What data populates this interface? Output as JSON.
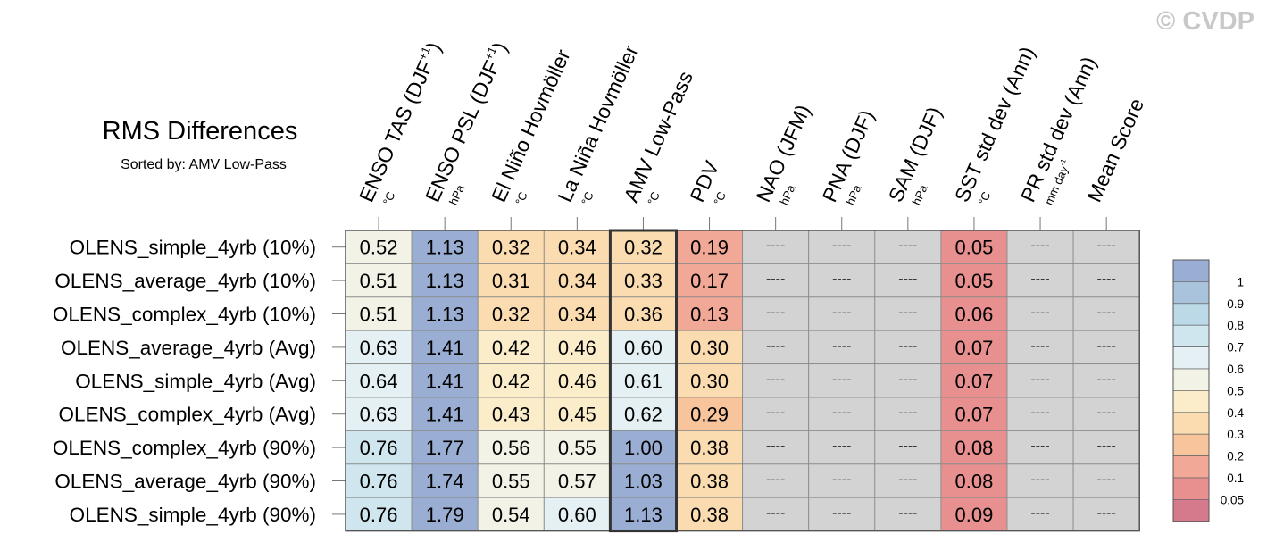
{
  "watermark": "© CVDP",
  "chart_data": {
    "type": "table",
    "title": "RMS Differences",
    "subtitle": "Sorted by: AMV Low-Pass",
    "highlight_column": 4,
    "columns": [
      {
        "label": "ENSO TAS (DJF",
        "sup": "+1",
        "tail": ")",
        "unit": "°C"
      },
      {
        "label": "ENSO PSL (DJF",
        "sup": "+1",
        "tail": ")",
        "unit": "hPa"
      },
      {
        "label": "El Niño Hovmöller",
        "sup": "",
        "tail": "",
        "unit": "°C"
      },
      {
        "label": "La Niña Hovmöller",
        "sup": "",
        "tail": "",
        "unit": "°C"
      },
      {
        "label": "AMV Low-Pass",
        "sup": "",
        "tail": "",
        "unit": "°C"
      },
      {
        "label": "PDV",
        "sup": "",
        "tail": "",
        "unit": "°C"
      },
      {
        "label": "NAO (JFM)",
        "sup": "",
        "tail": "",
        "unit": "hPa"
      },
      {
        "label": "PNA (DJF)",
        "sup": "",
        "tail": "",
        "unit": "hPa"
      },
      {
        "label": "SAM (DJF)",
        "sup": "",
        "tail": "",
        "unit": "hPa"
      },
      {
        "label": "SST std dev (Ann)",
        "sup": "",
        "tail": "",
        "unit": "°C"
      },
      {
        "label": "PR std dev (Ann)",
        "sup": "",
        "tail": "",
        "unit": "mm day",
        "unit_sup": "-1"
      },
      {
        "label": "Mean Score",
        "sup": "",
        "tail": "",
        "unit": ""
      }
    ],
    "rows": [
      {
        "name": "OLENS_simple_4yrb (10%)",
        "values": [
          "0.52",
          "1.13",
          "0.32",
          "0.34",
          "0.32",
          "0.19",
          "----",
          "----",
          "----",
          "0.05",
          "----",
          "----"
        ]
      },
      {
        "name": "OLENS_average_4yrb (10%)",
        "values": [
          "0.51",
          "1.13",
          "0.31",
          "0.34",
          "0.33",
          "0.17",
          "----",
          "----",
          "----",
          "0.05",
          "----",
          "----"
        ]
      },
      {
        "name": "OLENS_complex_4yrb (10%)",
        "values": [
          "0.51",
          "1.13",
          "0.32",
          "0.34",
          "0.36",
          "0.13",
          "----",
          "----",
          "----",
          "0.06",
          "----",
          "----"
        ]
      },
      {
        "name": "OLENS_average_4yrb (Avg)",
        "values": [
          "0.63",
          "1.41",
          "0.42",
          "0.46",
          "0.60",
          "0.30",
          "----",
          "----",
          "----",
          "0.07",
          "----",
          "----"
        ]
      },
      {
        "name": "OLENS_simple_4yrb (Avg)",
        "values": [
          "0.64",
          "1.41",
          "0.42",
          "0.46",
          "0.61",
          "0.30",
          "----",
          "----",
          "----",
          "0.07",
          "----",
          "----"
        ]
      },
      {
        "name": "OLENS_complex_4yrb (Avg)",
        "values": [
          "0.63",
          "1.41",
          "0.43",
          "0.45",
          "0.62",
          "0.29",
          "----",
          "----",
          "----",
          "0.07",
          "----",
          "----"
        ]
      },
      {
        "name": "OLENS_complex_4yrb (90%)",
        "values": [
          "0.76",
          "1.77",
          "0.56",
          "0.55",
          "1.00",
          "0.38",
          "----",
          "----",
          "----",
          "0.08",
          "----",
          "----"
        ]
      },
      {
        "name": "OLENS_average_4yrb (90%)",
        "values": [
          "0.76",
          "1.74",
          "0.55",
          "0.57",
          "1.03",
          "0.38",
          "----",
          "----",
          "----",
          "0.08",
          "----",
          "----"
        ]
      },
      {
        "name": "OLENS_simple_4yrb (90%)",
        "values": [
          "0.76",
          "1.79",
          "0.54",
          "0.60",
          "1.13",
          "0.38",
          "----",
          "----",
          "----",
          "0.09",
          "----",
          "----"
        ]
      }
    ],
    "missing_color": "#d3d3d3",
    "legend": {
      "placement": "right",
      "labels": [
        "1",
        "0.9",
        "0.8",
        "0.7",
        "0.6",
        "0.5",
        "0.4",
        "0.3",
        "0.2",
        "0.1",
        "0.05"
      ],
      "colors": [
        "#9aaed3",
        "#a9c3dd",
        "#bcd9e8",
        "#d0e6ef",
        "#e4f0f3",
        "#f3f2e6",
        "#fbecca",
        "#fbdcb0",
        "#f8c49c",
        "#f2a896",
        "#e88f90",
        "#d5798c"
      ]
    }
  }
}
